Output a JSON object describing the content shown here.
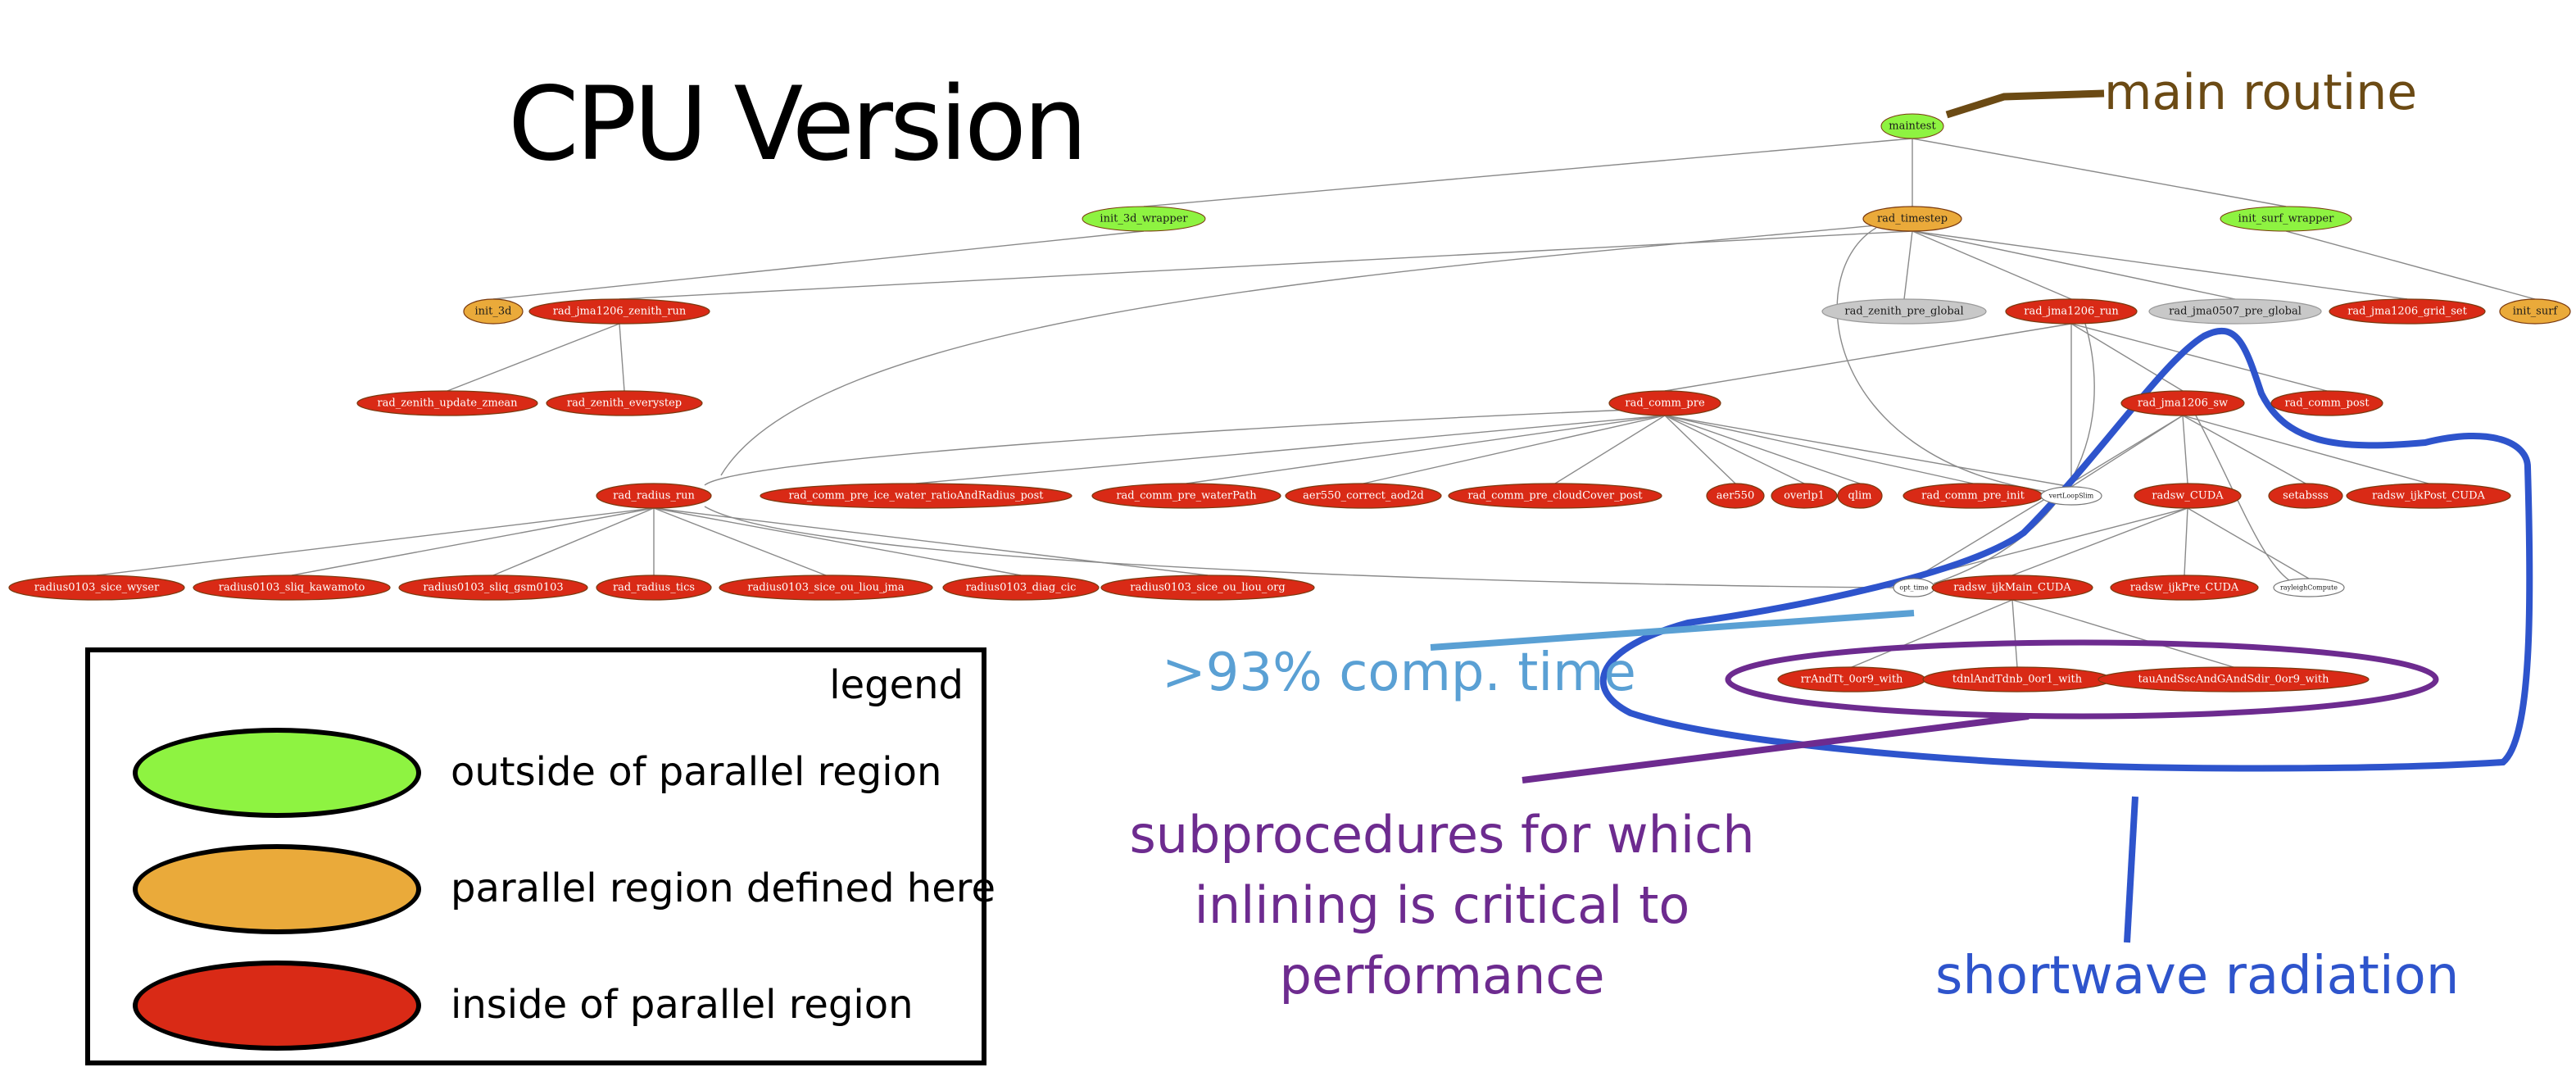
{
  "title": "CPU Version",
  "colors": {
    "outside": "#8ef341",
    "defined": "#eaaa3a",
    "inside": "#d92a16",
    "neutral": "#c8c8c8",
    "plain": "#ffffff",
    "main_annotation": "#6b4a14",
    "comp_annotation": "#5aa0d4",
    "sub_annotation": "#6d2b8f",
    "sw_annotation": "#2e54cc"
  },
  "nodes": [
    {
      "id": "maintest",
      "label": "maintest",
      "kind": "outside"
    },
    {
      "id": "init_3d_wrapper",
      "label": "init_3d_wrapper",
      "kind": "outside"
    },
    {
      "id": "rad_timestep",
      "label": "rad_timestep",
      "kind": "defined"
    },
    {
      "id": "init_surf_wrapper",
      "label": "init_surf_wrapper",
      "kind": "outside"
    },
    {
      "id": "init_3d",
      "label": "init_3d",
      "kind": "defined"
    },
    {
      "id": "rad_jma1206_zenith_run",
      "label": "rad_jma1206_zenith_run",
      "kind": "inside"
    },
    {
      "id": "rad_zenith_pre_global",
      "label": "rad_zenith_pre_global",
      "kind": "neutral"
    },
    {
      "id": "rad_jma1206_run",
      "label": "rad_jma1206_run",
      "kind": "inside"
    },
    {
      "id": "rad_jma0507_pre_global",
      "label": "rad_jma0507_pre_global",
      "kind": "neutral"
    },
    {
      "id": "rad_jma1206_grid_set",
      "label": "rad_jma1206_grid_set",
      "kind": "inside"
    },
    {
      "id": "init_surf",
      "label": "init_surf",
      "kind": "defined"
    },
    {
      "id": "rad_zenith_update_zmean",
      "label": "rad_zenith_update_zmean",
      "kind": "inside"
    },
    {
      "id": "rad_zenith_everystep",
      "label": "rad_zenith_everystep",
      "kind": "inside"
    },
    {
      "id": "rad_comm_pre",
      "label": "rad_comm_pre",
      "kind": "inside"
    },
    {
      "id": "rad_jma1206_sw",
      "label": "rad_jma1206_sw",
      "kind": "inside"
    },
    {
      "id": "rad_comm_post",
      "label": "rad_comm_post",
      "kind": "inside"
    },
    {
      "id": "rad_radius_run",
      "label": "rad_radius_run",
      "kind": "inside"
    },
    {
      "id": "rad_comm_pre_ice_water_ratioAndRadius_post",
      "label": "rad_comm_pre_ice_water_ratioAndRadius_post",
      "kind": "inside"
    },
    {
      "id": "rad_comm_pre_waterPath",
      "label": "rad_comm_pre_waterPath",
      "kind": "inside"
    },
    {
      "id": "aer550_correct_aod2d",
      "label": "aer550_correct_aod2d",
      "kind": "inside"
    },
    {
      "id": "rad_comm_pre_cloudCover_post",
      "label": "rad_comm_pre_cloudCover_post",
      "kind": "inside"
    },
    {
      "id": "aer550",
      "label": "aer550",
      "kind": "inside"
    },
    {
      "id": "overlp1",
      "label": "overlp1",
      "kind": "inside"
    },
    {
      "id": "qlim",
      "label": "qlim",
      "kind": "inside"
    },
    {
      "id": "rad_comm_pre_init",
      "label": "rad_comm_pre_init",
      "kind": "inside"
    },
    {
      "id": "stub_white_1",
      "label": "vertLoopSlim",
      "kind": "plain"
    },
    {
      "id": "radsw_CUDA",
      "label": "radsw_CUDA",
      "kind": "inside"
    },
    {
      "id": "setabsss",
      "label": "setabsss",
      "kind": "inside"
    },
    {
      "id": "radsw_ijkPost_CUDA",
      "label": "radsw_ijkPost_CUDA",
      "kind": "inside"
    },
    {
      "id": "radius0103_sice_wyser",
      "label": "radius0103_sice_wyser",
      "kind": "inside"
    },
    {
      "id": "radius0103_sliq_kawamoto",
      "label": "radius0103_sliq_kawamoto",
      "kind": "inside"
    },
    {
      "id": "radius0103_sliq_gsm0103",
      "label": "radius0103_sliq_gsm0103",
      "kind": "inside"
    },
    {
      "id": "rad_radius_tics",
      "label": "rad_radius_tics",
      "kind": "inside"
    },
    {
      "id": "radius0103_sice_ou_liou_jma",
      "label": "radius0103_sice_ou_liou_jma",
      "kind": "inside"
    },
    {
      "id": "radius0103_diag_cic",
      "label": "radius0103_diag_cic",
      "kind": "inside"
    },
    {
      "id": "radius0103_sice_ou_liou_org",
      "label": "radius0103_sice_ou_liou_org",
      "kind": "inside"
    },
    {
      "id": "stub_white_2",
      "label": "opt_time",
      "kind": "plain"
    },
    {
      "id": "radsw_ijkMain_CUDA",
      "label": "radsw_ijkMain_CUDA",
      "kind": "inside"
    },
    {
      "id": "radsw_ijkPre_CUDA",
      "label": "radsw_ijkPre_CUDA",
      "kind": "inside"
    },
    {
      "id": "stub_white_3",
      "label": "rayleighCompute",
      "kind": "plain"
    },
    {
      "id": "rrAndTt_0or9_with",
      "label": "rrAndTt_0or9_with",
      "kind": "inside"
    },
    {
      "id": "tdnlAndTdnb_0or1_with",
      "label": "tdnlAndTdnb_0or1_with",
      "kind": "inside"
    },
    {
      "id": "tauAndSscAndGAndSdir_0or9_with",
      "label": "tauAndSscAndGAndSdir_0or9_with",
      "kind": "inside"
    }
  ],
  "edges": [
    [
      "maintest",
      "init_3d_wrapper"
    ],
    [
      "maintest",
      "rad_timestep"
    ],
    [
      "maintest",
      "init_surf_wrapper"
    ],
    [
      "init_3d_wrapper",
      "init_3d"
    ],
    [
      "rad_timestep",
      "rad_jma1206_zenith_run"
    ],
    [
      "rad_timestep",
      "rad_zenith_pre_global"
    ],
    [
      "rad_timestep",
      "rad_jma1206_run"
    ],
    [
      "rad_timestep",
      "rad_jma0507_pre_global"
    ],
    [
      "rad_timestep",
      "rad_jma1206_grid_set"
    ],
    [
      "rad_timestep",
      "rad_radius_run"
    ],
    [
      "rad_timestep",
      "stub_white_1"
    ],
    [
      "init_surf_wrapper",
      "init_surf"
    ],
    [
      "rad_jma1206_zenith_run",
      "rad_zenith_update_zmean"
    ],
    [
      "rad_jma1206_zenith_run",
      "rad_zenith_everystep"
    ],
    [
      "rad_jma1206_run",
      "rad_comm_pre"
    ],
    [
      "rad_jma1206_run",
      "rad_jma1206_sw"
    ],
    [
      "rad_jma1206_run",
      "rad_comm_post"
    ],
    [
      "rad_jma1206_run",
      "stub_white_1"
    ],
    [
      "rad_jma1206_run",
      "stub_white_2"
    ],
    [
      "rad_comm_pre",
      "rad_comm_pre_ice_water_ratioAndRadius_post"
    ],
    [
      "rad_comm_pre",
      "rad_comm_pre_waterPath"
    ],
    [
      "rad_comm_pre",
      "aer550_correct_aod2d"
    ],
    [
      "rad_comm_pre",
      "rad_comm_pre_cloudCover_post"
    ],
    [
      "rad_comm_pre",
      "aer550"
    ],
    [
      "rad_comm_pre",
      "overlp1"
    ],
    [
      "rad_comm_pre",
      "qlim"
    ],
    [
      "rad_comm_pre",
      "rad_comm_pre_init"
    ],
    [
      "rad_comm_pre",
      "stub_white_1"
    ],
    [
      "rad_comm_pre",
      "rad_radius_run"
    ],
    [
      "rad_jma1206_sw",
      "radsw_CUDA"
    ],
    [
      "rad_jma1206_sw",
      "setabsss"
    ],
    [
      "rad_jma1206_sw",
      "radsw_ijkPost_CUDA"
    ],
    [
      "rad_jma1206_sw",
      "stub_white_1"
    ],
    [
      "rad_jma1206_sw",
      "stub_white_3"
    ],
    [
      "rad_jma1206_sw",
      "stub_white_2"
    ],
    [
      "rad_radius_run",
      "radius0103_sice_wyser"
    ],
    [
      "rad_radius_run",
      "radius0103_sliq_kawamoto"
    ],
    [
      "rad_radius_run",
      "radius0103_sliq_gsm0103"
    ],
    [
      "rad_radius_run",
      "rad_radius_tics"
    ],
    [
      "rad_radius_run",
      "radius0103_sice_ou_liou_jma"
    ],
    [
      "rad_radius_run",
      "radius0103_diag_cic"
    ],
    [
      "rad_radius_run",
      "radius0103_sice_ou_liou_org"
    ],
    [
      "rad_radius_run",
      "stub_white_2"
    ],
    [
      "radsw_CUDA",
      "radsw_ijkMain_CUDA"
    ],
    [
      "radsw_CUDA",
      "radsw_ijkPre_CUDA"
    ],
    [
      "radsw_CUDA",
      "stub_white_3"
    ],
    [
      "radsw_CUDA",
      "stub_white_2"
    ],
    [
      "radsw_ijkMain_CUDA",
      "rrAndTt_0or9_with"
    ],
    [
      "radsw_ijkMain_CUDA",
      "tdnlAndTdnb_0or1_with"
    ],
    [
      "radsw_ijkMain_CUDA",
      "tauAndSscAndGAndSdir_0or9_with"
    ]
  ],
  "annotations": {
    "main_routine": "main routine",
    "comp_time": ">93% comp. time",
    "subprocedures": "subprocedures for which inlining is critical to performance",
    "shortwave": "shortwave radiation"
  },
  "legend": {
    "title": "legend",
    "items": [
      {
        "label": "outside of parallel region",
        "kind": "outside"
      },
      {
        "label": "parallel region defined here",
        "kind": "defined"
      },
      {
        "label": "inside of parallel region",
        "kind": "inside"
      }
    ]
  }
}
